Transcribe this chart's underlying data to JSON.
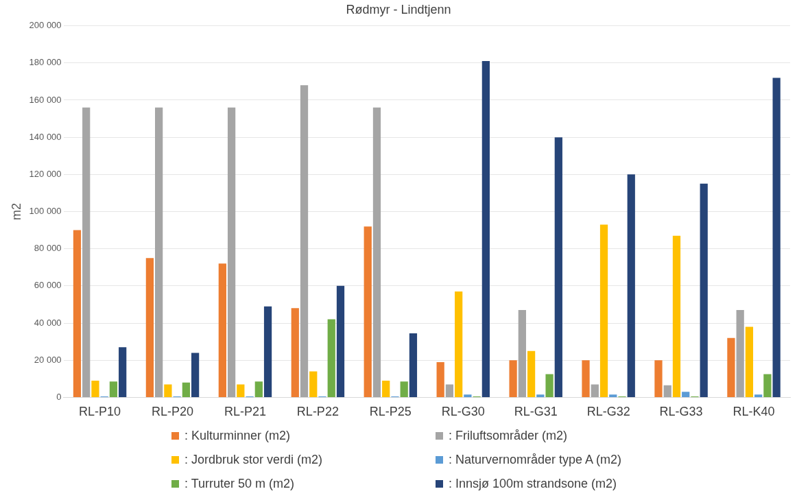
{
  "chart_data": {
    "type": "bar",
    "title": "Rødmyr - Lindtjenn",
    "ylabel": "m2",
    "categories": [
      "RL-P10",
      "RL-P20",
      "RL-P21",
      "RL-P22",
      "RL-P25",
      "RL-G30",
      "RL-G31",
      "RL-G32",
      "RL-G33",
      "RL-K40"
    ],
    "series": [
      {
        "name": ": Kulturminner (m2)",
        "color": "#ed7d31",
        "values": [
          90000,
          75000,
          72000,
          48000,
          92000,
          19000,
          20000,
          20000,
          20000,
          32000
        ]
      },
      {
        "name": ": Friluftsområder (m2)",
        "color": "#a5a5a5",
        "values": [
          156000,
          156000,
          156000,
          168000,
          156000,
          7000,
          47000,
          7000,
          6500,
          47000
        ]
      },
      {
        "name": ": Jordbruk stor verdi (m2)",
        "color": "#ffc000",
        "values": [
          9000,
          7000,
          7000,
          14000,
          9000,
          57000,
          25000,
          93000,
          87000,
          38000
        ]
      },
      {
        "name": ": Naturvernområder type A (m2)",
        "color": "#5b9bd5",
        "values": [
          500,
          500,
          500,
          500,
          500,
          1500,
          1500,
          1500,
          3000,
          1500
        ]
      },
      {
        "name": ": Turruter 50 m (m2)",
        "color": "#70ad47",
        "values": [
          8500,
          8000,
          8500,
          42000,
          8500,
          500,
          12500,
          500,
          500,
          12500
        ]
      },
      {
        "name": ": Innsjø 100m strandsone (m2)",
        "color": "#264478",
        "values": [
          27000,
          24000,
          49000,
          60000,
          34500,
          181000,
          140000,
          120000,
          115000,
          172000
        ]
      }
    ],
    "ylim": [
      0,
      200000
    ],
    "yticks": [
      {
        "value": 0,
        "label": "0"
      },
      {
        "value": 20000,
        "label": "20 000"
      },
      {
        "value": 40000,
        "label": "40 000"
      },
      {
        "value": 60000,
        "label": "60 000"
      },
      {
        "value": 80000,
        "label": "80 000"
      },
      {
        "value": 100000,
        "label": "100 000"
      },
      {
        "value": 120000,
        "label": "120 000"
      },
      {
        "value": 140000,
        "label": "140 000"
      },
      {
        "value": 160000,
        "label": "160 000"
      },
      {
        "value": 180000,
        "label": "180 000"
      },
      {
        "value": 200000,
        "label": "200 000"
      }
    ],
    "grid": "y",
    "legend": "bottom"
  }
}
